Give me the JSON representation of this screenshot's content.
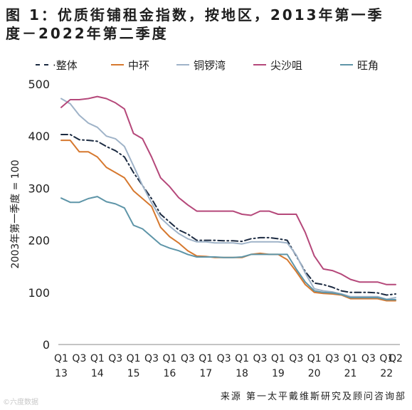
{
  "header": {
    "title_line1": "图 1：优质街铺租金指数，按地区，2013年第一季",
    "title_line2": "度－2022年第二季度"
  },
  "legend": [
    {
      "label": "·整体",
      "color": "#1b2a41",
      "dash": true
    },
    {
      "label": "中环",
      "color": "#d6782e",
      "dash": false
    },
    {
      "label": "铜锣湾",
      "color": "#9fb3c8",
      "dash": false
    },
    {
      "label": "尖沙咀",
      "color": "#b5487a",
      "dash": false
    },
    {
      "label": "旺角",
      "color": "#5e95a8",
      "dash": false
    }
  ],
  "source": "来源 第一太平戴维斯研究及顾问咨询部",
  "watermark": "©六度数据",
  "chart_data": {
    "type": "line",
    "ylabel": "2003年第一季度 = 100",
    "ylim": [
      0,
      500
    ],
    "yticks": [
      0,
      100,
      200,
      300,
      400,
      500
    ],
    "xtick_labels": [
      {
        "top": "Q1",
        "bottom": "13"
      },
      {
        "top": "Q3",
        "bottom": ""
      },
      {
        "top": "Q1",
        "bottom": "14"
      },
      {
        "top": "Q3",
        "bottom": ""
      },
      {
        "top": "Q1",
        "bottom": "15"
      },
      {
        "top": "Q3",
        "bottom": ""
      },
      {
        "top": "Q1",
        "bottom": "16"
      },
      {
        "top": "Q3",
        "bottom": ""
      },
      {
        "top": "Q1",
        "bottom": "17"
      },
      {
        "top": "Q3",
        "bottom": ""
      },
      {
        "top": "Q1",
        "bottom": "18"
      },
      {
        "top": "Q3",
        "bottom": ""
      },
      {
        "top": "Q1",
        "bottom": "19"
      },
      {
        "top": "Q3",
        "bottom": ""
      },
      {
        "top": "Q1",
        "bottom": "20"
      },
      {
        "top": "Q3",
        "bottom": ""
      },
      {
        "top": "Q1",
        "bottom": "21"
      },
      {
        "top": "Q3",
        "bottom": ""
      },
      {
        "top": "Q1",
        "bottom": "22"
      },
      {
        "top": "Q2",
        "bottom": ""
      }
    ],
    "x": [
      "2013Q1",
      "2013Q2",
      "2013Q3",
      "2013Q4",
      "2014Q1",
      "2014Q2",
      "2014Q3",
      "2014Q4",
      "2015Q1",
      "2015Q2",
      "2015Q3",
      "2015Q4",
      "2016Q1",
      "2016Q2",
      "2016Q3",
      "2016Q4",
      "2017Q1",
      "2017Q2",
      "2017Q3",
      "2017Q4",
      "2018Q1",
      "2018Q2",
      "2018Q3",
      "2018Q4",
      "2019Q1",
      "2019Q2",
      "2019Q3",
      "2019Q4",
      "2020Q1",
      "2020Q2",
      "2020Q3",
      "2020Q4",
      "2021Q1",
      "2021Q2",
      "2021Q3",
      "2021Q4",
      "2022Q1",
      "2022Q2"
    ],
    "series": [
      {
        "name": "整体",
        "color": "#1b2a41",
        "dash": "9,4,2,4",
        "values": [
          403,
          403,
          393,
          392,
          390,
          380,
          372,
          360,
          330,
          305,
          280,
          250,
          235,
          220,
          212,
          200,
          200,
          200,
          199,
          199,
          198,
          203,
          205,
          205,
          203,
          200,
          170,
          140,
          118,
          115,
          110,
          103,
          100,
          100,
          100,
          99,
          95,
          97
        ]
      },
      {
        "name": "中环",
        "color": "#d6782e",
        "dash": "",
        "values": [
          392,
          392,
          370,
          370,
          360,
          340,
          330,
          320,
          295,
          280,
          265,
          225,
          207,
          195,
          180,
          170,
          169,
          167,
          167,
          167,
          167,
          173,
          175,
          173,
          173,
          163,
          140,
          115,
          100,
          98,
          97,
          95,
          88,
          88,
          88,
          88,
          84,
          84
        ]
      },
      {
        "name": "铜锣湾",
        "color": "#9fb3c8",
        "dash": "",
        "values": [
          472,
          462,
          440,
          425,
          417,
          400,
          395,
          380,
          343,
          305,
          272,
          243,
          227,
          213,
          203,
          197,
          197,
          195,
          195,
          195,
          193,
          197,
          197,
          197,
          197,
          195,
          172,
          137,
          107,
          103,
          101,
          97,
          92,
          92,
          92,
          92,
          87,
          90
        ]
      },
      {
        "name": "尖沙咀",
        "color": "#b5487a",
        "dash": "",
        "values": [
          455,
          470,
          470,
          472,
          476,
          472,
          464,
          452,
          405,
          395,
          360,
          320,
          303,
          282,
          268,
          256,
          256,
          256,
          256,
          256,
          250,
          248,
          256,
          256,
          250,
          250,
          250,
          215,
          170,
          145,
          142,
          135,
          125,
          120,
          120,
          120,
          115,
          115
        ]
      },
      {
        "name": "旺角",
        "color": "#5e95a8",
        "dash": "",
        "values": [
          281,
          273,
          273,
          280,
          284,
          274,
          270,
          262,
          229,
          222,
          207,
          192,
          185,
          180,
          173,
          168,
          168,
          168,
          167,
          167,
          168,
          173,
          173,
          173,
          173,
          173,
          145,
          120,
          103,
          100,
          99,
          96,
          90,
          90,
          90,
          90,
          86,
          86
        ]
      }
    ]
  }
}
